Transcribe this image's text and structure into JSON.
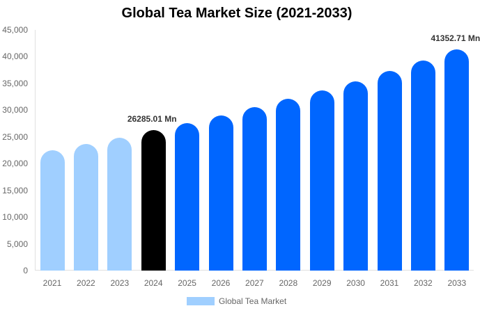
{
  "chart_data": {
    "type": "bar",
    "title": "Global Tea Market Size (2021-2033)",
    "xlabel": "",
    "ylabel": "",
    "ylim": [
      0,
      45000
    ],
    "yticks": [
      "0",
      "5,000",
      "10,000",
      "15,000",
      "20,000",
      "25,000",
      "30,000",
      "35,000",
      "40,000",
      "45,000"
    ],
    "grid": false,
    "legend_position": "bottom",
    "categories": [
      "2021",
      "2022",
      "2023",
      "2024",
      "2025",
      "2026",
      "2027",
      "2028",
      "2029",
      "2030",
      "2031",
      "2032",
      "2033"
    ],
    "series": [
      {
        "name": "Global Tea Market",
        "values": [
          22500,
          23700,
          24800,
          26285.01,
          27600,
          29000,
          30500,
          32100,
          33700,
          35400,
          37300,
          39300,
          41352.71
        ]
      }
    ],
    "bar_colors": [
      "#a0cfff",
      "#a0cfff",
      "#a0cfff",
      "#000000",
      "#0066ff",
      "#0066ff",
      "#0066ff",
      "#0066ff",
      "#0066ff",
      "#0066ff",
      "#0066ff",
      "#0066ff",
      "#0066ff"
    ],
    "annotations": [
      {
        "category": "2024",
        "text": "26285.01 Mn"
      },
      {
        "category": "2033",
        "text": "41352.71 Mn"
      }
    ]
  },
  "legend": {
    "label": "Global Tea Market",
    "color": "#a0cfff"
  }
}
